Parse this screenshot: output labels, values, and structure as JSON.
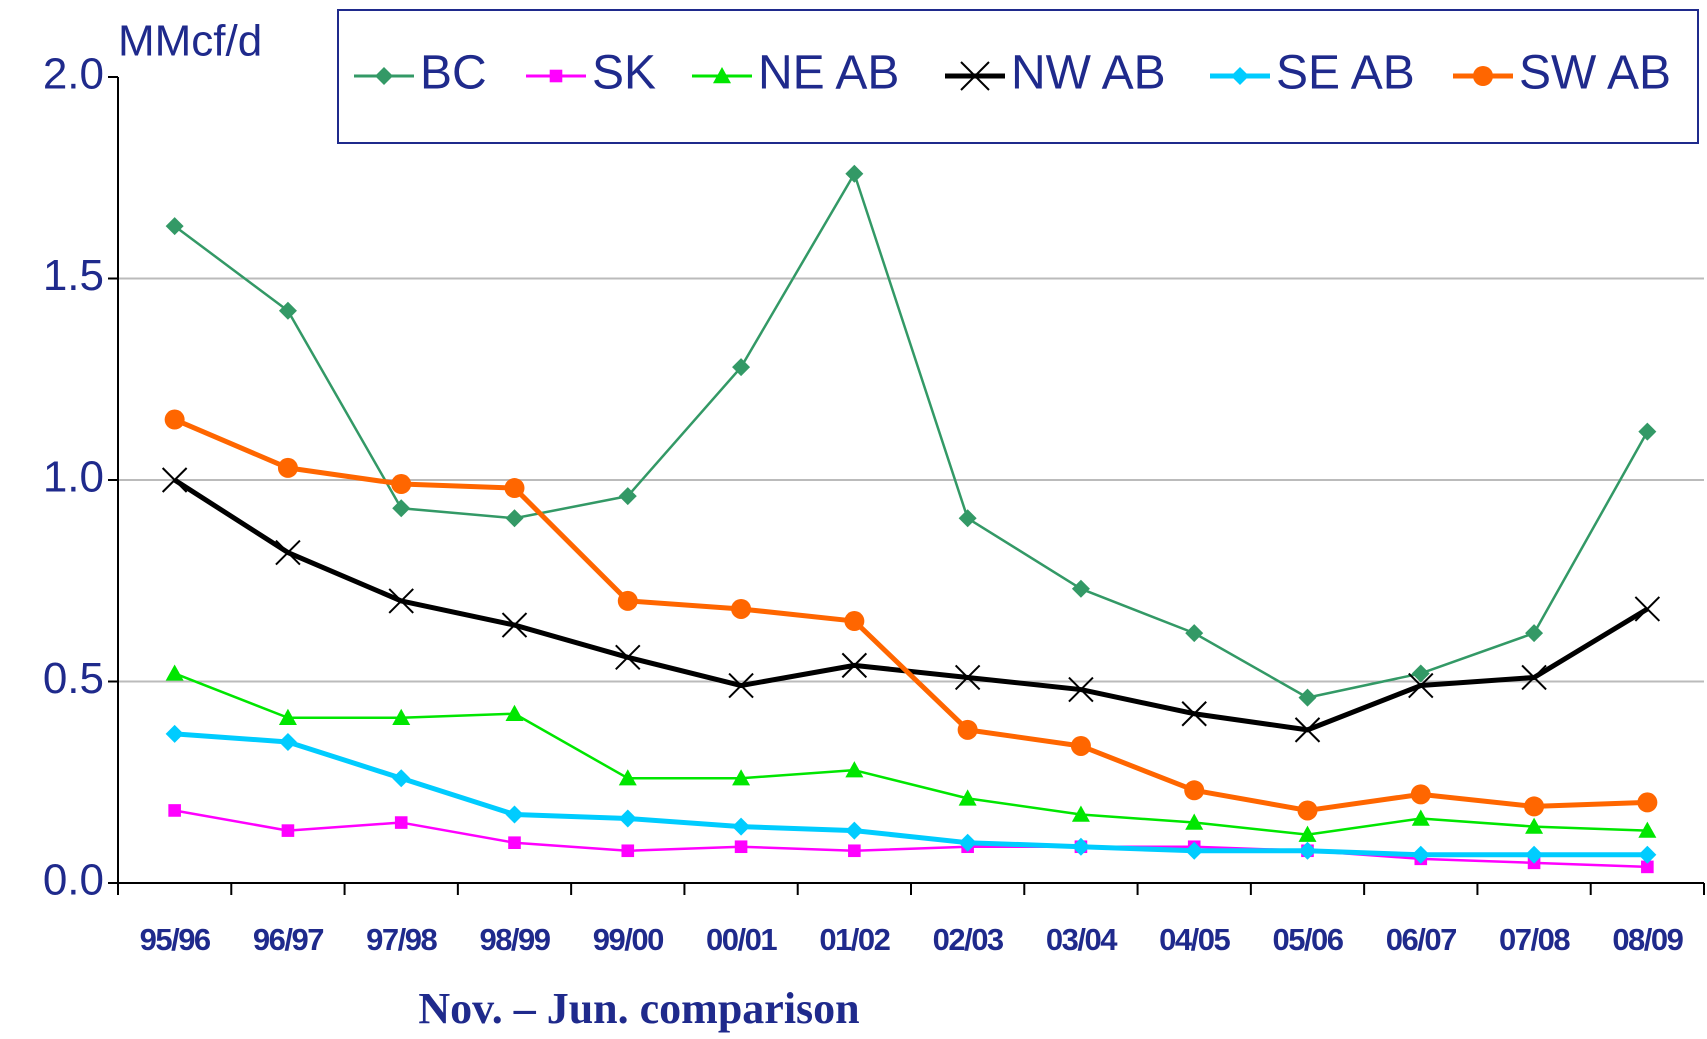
{
  "chart_data": {
    "type": "line",
    "y_axis_label": "MMcf/d",
    "x_axis_label": "Nov. – Jun. comparison",
    "categories": [
      "95/96",
      "96/97",
      "97/98",
      "98/99",
      "99/00",
      "00/01",
      "01/02",
      "02/03",
      "03/04",
      "04/05",
      "05/06",
      "06/07",
      "07/08",
      "08/09"
    ],
    "ylim": [
      0,
      2
    ],
    "yticks": [
      {
        "value": 0,
        "label": "0.0"
      },
      {
        "value": 0.5,
        "label": "0.5"
      },
      {
        "value": 1,
        "label": "1.0"
      },
      {
        "value": 1.5,
        "label": "1.5"
      },
      {
        "value": 2,
        "label": "2.0"
      }
    ],
    "grid": true,
    "legend": "top",
    "series": [
      {
        "name": "BC",
        "color": "#339966",
        "marker": "diamond",
        "values": [
          1.63,
          1.42,
          0.93,
          0.905,
          0.96,
          1.28,
          1.76,
          0.905,
          0.73,
          0.62,
          0.46,
          0.52,
          0.62,
          1.12
        ]
      },
      {
        "name": "SK",
        "color": "#ff00ff",
        "marker": "square",
        "values": [
          0.18,
          0.13,
          0.15,
          0.1,
          0.08,
          0.09,
          0.08,
          0.09,
          0.09,
          0.09,
          0.08,
          0.06,
          0.05,
          0.04
        ]
      },
      {
        "name": "NE AB",
        "color": "#00e600",
        "marker": "triangle",
        "values": [
          0.52,
          0.41,
          0.41,
          0.42,
          0.26,
          0.26,
          0.28,
          0.21,
          0.17,
          0.15,
          0.12,
          0.16,
          0.14,
          0.13
        ]
      },
      {
        "name": "NW AB",
        "color": "#000000",
        "marker": "x",
        "values": [
          1.0,
          0.82,
          0.7,
          0.64,
          0.56,
          0.49,
          0.54,
          0.51,
          0.48,
          0.42,
          0.38,
          0.49,
          0.51,
          0.68
        ]
      },
      {
        "name": "SE AB",
        "color": "#00ccff",
        "marker": "diamond",
        "values": [
          0.37,
          0.35,
          0.26,
          0.17,
          0.16,
          0.14,
          0.13,
          0.1,
          0.09,
          0.08,
          0.08,
          0.07,
          0.07,
          0.07
        ]
      },
      {
        "name": "SW AB",
        "color": "#ff6600",
        "marker": "circle",
        "values": [
          1.15,
          1.03,
          0.99,
          0.98,
          0.7,
          0.68,
          0.65,
          0.38,
          0.34,
          0.23,
          0.18,
          0.22,
          0.19,
          0.2
        ]
      }
    ]
  }
}
